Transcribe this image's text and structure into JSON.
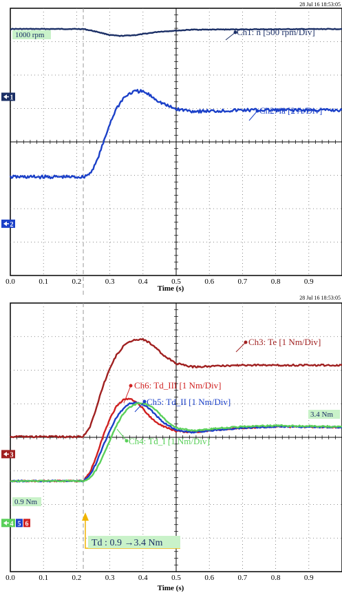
{
  "chart_data": [
    {
      "type": "line",
      "timestamp": "28 Jul 16  18:53:05",
      "xlabel": "Time (s)",
      "xlim": [
        0,
        1.0
      ],
      "xticks": [
        "0.0",
        "0.1",
        "0.2",
        "0.3",
        "0.4",
        "0.5",
        "0.6",
        "0.7",
        "0.8",
        "0.9"
      ],
      "divisions_y": 8,
      "event_time": 0.22,
      "ref_label": "1000 rpm",
      "ch_markers": [
        {
          "text": "1",
          "color": "#1b2f66",
          "div": 2.65
        },
        {
          "text": "2",
          "color": "#1b40c8",
          "div": 6.45
        }
      ],
      "series": [
        {
          "name": "Ch1: n [500 rpm/Div]",
          "color": "#1b2f66",
          "x": [
            0.0,
            0.2,
            0.22,
            0.26,
            0.3,
            0.33,
            0.38,
            0.45,
            0.55,
            1.0
          ],
          "div": [
            0.62,
            0.62,
            0.62,
            0.7,
            0.8,
            0.83,
            0.8,
            0.7,
            0.64,
            0.62
          ]
        },
        {
          "name": "Ch2: ia [2 A/Div]",
          "color": "#1b40c8",
          "x": [
            0.0,
            0.22,
            0.24,
            0.26,
            0.28,
            0.3,
            0.32,
            0.34,
            0.36,
            0.38,
            0.4,
            0.42,
            0.45,
            0.48,
            0.5,
            0.55,
            0.6,
            0.7,
            1.0
          ],
          "div": [
            5.05,
            5.05,
            4.95,
            4.6,
            4.05,
            3.45,
            3.0,
            2.7,
            2.55,
            2.48,
            2.5,
            2.6,
            2.8,
            2.95,
            3.02,
            3.08,
            3.08,
            3.05,
            3.05
          ]
        }
      ]
    },
    {
      "type": "line",
      "timestamp": "28 Jul 16  18:53:05",
      "xlabel": "Time (s)",
      "xlim": [
        0,
        1.0
      ],
      "xticks": [
        "0.0",
        "0.1",
        "0.2",
        "0.3",
        "0.4",
        "0.5",
        "0.6",
        "0.7",
        "0.8",
        "0.9"
      ],
      "divisions_y": 8,
      "event_time": 0.22,
      "ref_labels": [
        "0.9 Nm",
        "3.4 Nm"
      ],
      "annotation": "Td : 0.9 →3.4 Nm",
      "ch_markers": [
        {
          "text": "3",
          "color": "#a02020",
          "div": 4.5
        },
        {
          "text": "4",
          "color": "#5ad05a",
          "div": 6.55
        },
        {
          "text": "5",
          "color": "#1b40c8",
          "div": 6.55
        },
        {
          "text": "6",
          "color": "#d02020",
          "div": 6.55
        }
      ],
      "series": [
        {
          "name": "Ch3: Te [1 Nm/Div]",
          "color": "#a02020",
          "x": [
            0.0,
            0.22,
            0.24,
            0.26,
            0.28,
            0.3,
            0.32,
            0.34,
            0.36,
            0.38,
            0.4,
            0.42,
            0.44,
            0.46,
            0.5,
            0.55,
            0.6,
            0.7,
            1.0
          ],
          "div": [
            3.98,
            3.98,
            3.7,
            3.1,
            2.45,
            1.95,
            1.55,
            1.3,
            1.15,
            1.08,
            1.08,
            1.18,
            1.35,
            1.55,
            1.8,
            1.9,
            1.88,
            1.85,
            1.85
          ]
        },
        {
          "name": "Ch6: Td_III [1 Nm/Div]",
          "color": "#d02020",
          "x": [
            0.0,
            0.22,
            0.24,
            0.26,
            0.28,
            0.3,
            0.32,
            0.34,
            0.36,
            0.38,
            0.4,
            0.42,
            0.45,
            0.5,
            0.55,
            0.6,
            0.7,
            0.8,
            1.0
          ],
          "div": [
            5.3,
            5.3,
            5.05,
            4.55,
            3.95,
            3.45,
            3.08,
            2.88,
            2.85,
            2.95,
            3.15,
            3.38,
            3.62,
            3.82,
            3.85,
            3.8,
            3.72,
            3.68,
            3.7
          ]
        },
        {
          "name": "Ch5: Td_II [1 Nm/Div]",
          "color": "#1b40c8",
          "x": [
            0.0,
            0.22,
            0.24,
            0.26,
            0.28,
            0.3,
            0.32,
            0.34,
            0.36,
            0.38,
            0.4,
            0.42,
            0.44,
            0.46,
            0.5,
            0.55,
            0.6,
            0.7,
            0.8,
            1.0
          ],
          "div": [
            5.3,
            5.3,
            5.12,
            4.75,
            4.25,
            3.8,
            3.4,
            3.15,
            3.0,
            2.97,
            3.02,
            3.15,
            3.35,
            3.55,
            3.78,
            3.85,
            3.8,
            3.72,
            3.68,
            3.7
          ]
        },
        {
          "name": "Ch4: Td_I [1 Nm/Div]",
          "color": "#5ad05a",
          "x": [
            0.0,
            0.22,
            0.24,
            0.26,
            0.28,
            0.3,
            0.32,
            0.34,
            0.36,
            0.38,
            0.4,
            0.42,
            0.44,
            0.46,
            0.48,
            0.5,
            0.55,
            0.6,
            0.7,
            0.8,
            1.0
          ],
          "div": [
            5.3,
            5.3,
            5.22,
            4.95,
            4.55,
            4.1,
            3.65,
            3.3,
            3.1,
            3.0,
            2.98,
            3.05,
            3.2,
            3.4,
            3.6,
            3.72,
            3.8,
            3.75,
            3.68,
            3.65,
            3.68
          ]
        }
      ]
    }
  ]
}
